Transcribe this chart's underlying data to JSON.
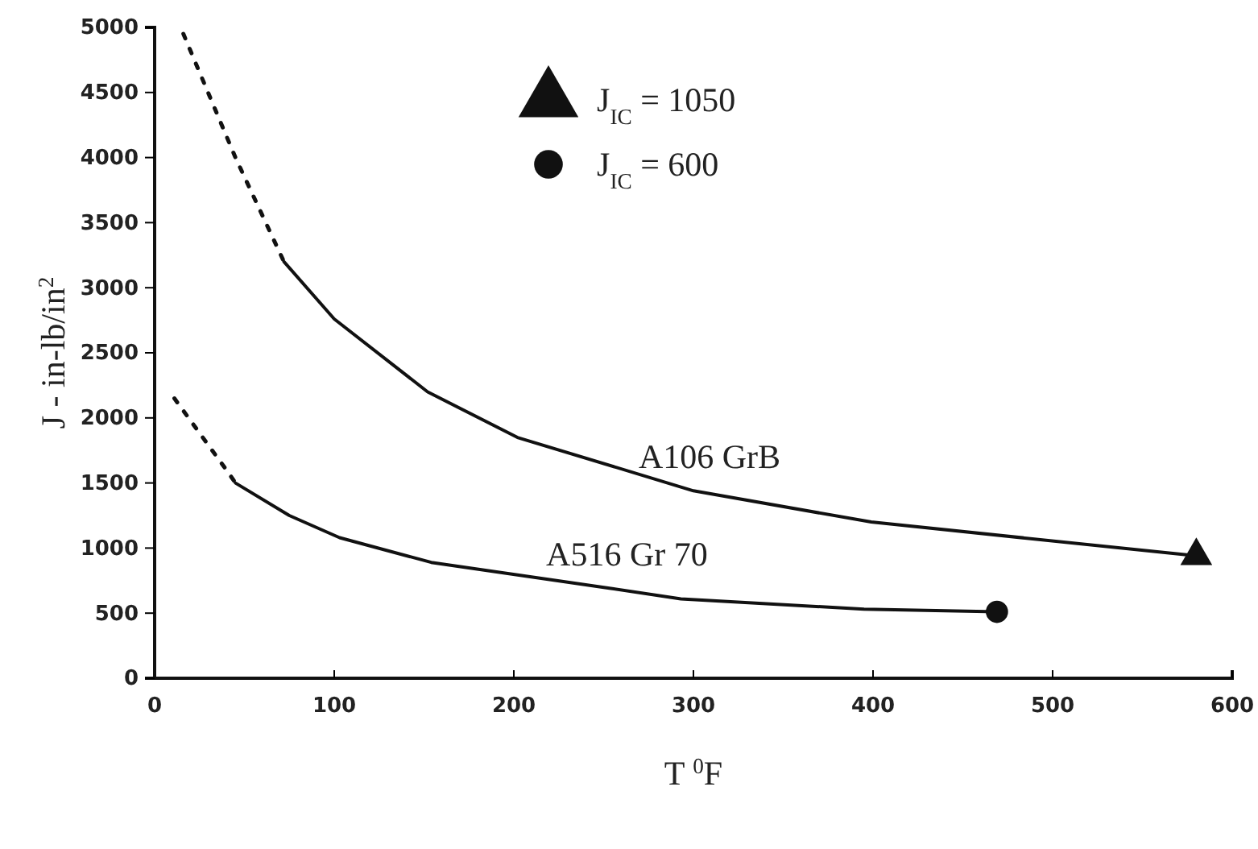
{
  "chart_data": {
    "type": "line",
    "xlabel": "T $^{0}$F",
    "ylabel": "J - in-lb/in$^{2}$",
    "xlim": [
      0,
      600
    ],
    "xticks": [
      0,
      100,
      200,
      300,
      400,
      500,
      600
    ],
    "ylim": [
      0,
      5000
    ],
    "yticks": [
      0,
      500,
      1000,
      1500,
      2000,
      2500,
      3000,
      3500,
      4000,
      4500,
      5000
    ],
    "grid": false,
    "legend": "top",
    "line_style": "solid",
    "series": [
      {
        "line_style": "dotted",
        "color": "#111111",
        "x": [
          16,
          45,
          72
        ],
        "values": [
          4950,
          4000,
          3200
        ]
      },
      {
        "name": "A106 GrB",
        "color": "#111111",
        "x": [
          72,
          100,
          152,
          202,
          300,
          399,
          580
        ],
        "values": [
          3200,
          2760,
          2200,
          1850,
          1440,
          1200,
          940
        ]
      },
      {
        "line_style": "dotted",
        "color": "#111111",
        "x": [
          11,
          41,
          45
        ],
        "values": [
          2150,
          1580,
          1500
        ]
      },
      {
        "name": "A516 Gr 70",
        "color": "#111111",
        "x": [
          45,
          75,
          103,
          154,
          254,
          293,
          395,
          469
        ],
        "values": [
          1500,
          1250,
          1080,
          890,
          690,
          610,
          530,
          510
        ]
      },
      {
        "name": "J$_{IC}$ = 1050",
        "type": "scatter",
        "marker": "triangle",
        "color": "#111111",
        "x": [
          580
        ],
        "values": [
          940
        ]
      },
      {
        "name": "J$_{IC}$ = 600",
        "type": "scatter",
        "marker": "circle",
        "color": "#111111",
        "x": [
          469
        ],
        "values": [
          510
        ]
      }
    ]
  }
}
